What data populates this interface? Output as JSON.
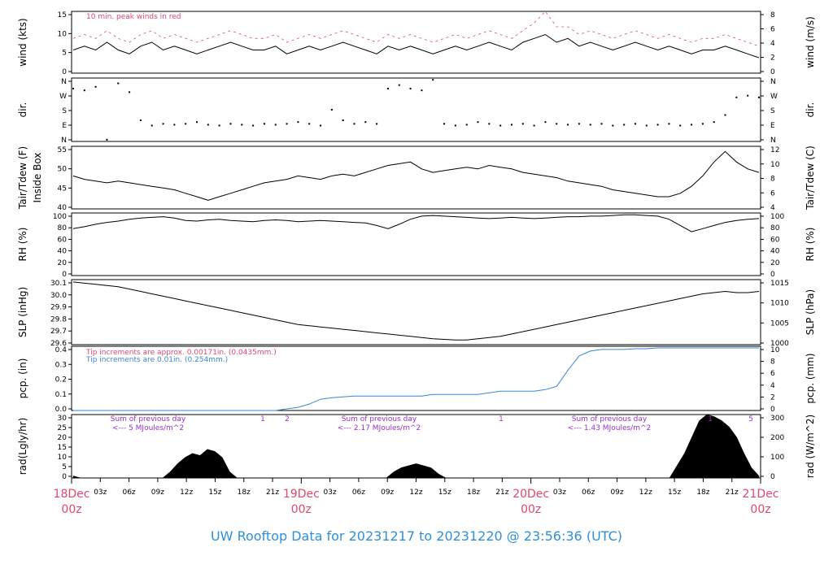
{
  "chart_data": [
    {
      "type": "line",
      "ylabel_left": "wind (kts)",
      "ylabel_right": "wind (m/s)",
      "annotation": "10 min. peak winds in red",
      "yticks_left": [
        "0",
        "5",
        "10",
        "15"
      ],
      "yticks_right": [
        "0",
        "2",
        "4",
        "6",
        "8"
      ],
      "ylim": [
        0,
        16
      ],
      "series": [
        {
          "values": [
            6,
            7,
            6,
            8,
            6,
            5,
            7,
            8,
            6,
            7,
            6,
            5,
            6,
            7,
            8,
            7,
            6,
            6,
            7,
            5,
            6,
            7,
            6,
            7,
            8,
            7,
            6,
            5,
            7,
            6,
            7,
            6,
            5,
            6,
            7,
            6,
            7,
            8,
            7,
            6,
            8,
            9,
            10,
            8,
            9,
            7,
            8,
            7,
            6,
            7,
            8,
            7,
            6,
            7,
            6,
            5,
            6,
            6,
            7,
            6,
            5,
            4
          ]
        },
        {
          "values": [
            9,
            10,
            9,
            11,
            9,
            8,
            10,
            11,
            9,
            10,
            9,
            8,
            9,
            10,
            11,
            10,
            9,
            9,
            10,
            8,
            9,
            10,
            9,
            10,
            11,
            10,
            9,
            8,
            10,
            9,
            10,
            9,
            8,
            9,
            10,
            9,
            10,
            11,
            10,
            9,
            11,
            13,
            16,
            12,
            12,
            10,
            11,
            10,
            9,
            10,
            11,
            10,
            9,
            10,
            9,
            8,
            9,
            9,
            10,
            9,
            8,
            7
          ]
        }
      ]
    },
    {
      "type": "scatter",
      "ylabel_left": "dir.",
      "ylabel_right": "dir.",
      "yticks_left": [
        "N",
        "E",
        "S",
        "W",
        "N"
      ],
      "yticks_right": [
        "N",
        "E",
        "S",
        "W",
        "N"
      ],
      "ylim": [
        0,
        360
      ],
      "series": [
        {
          "values": [
            300,
            290,
            310,
            10,
            330,
            280,
            120,
            90,
            100,
            95,
            100,
            110,
            95,
            90,
            100,
            95,
            90,
            100,
            95,
            100,
            110,
            100,
            90,
            180,
            120,
            100,
            110,
            100,
            300,
            320,
            300,
            290,
            350,
            100,
            90,
            95,
            110,
            100,
            90,
            95,
            100,
            90,
            110,
            100,
            95,
            100,
            95,
            100,
            90,
            95,
            100,
            90,
            95,
            100,
            90,
            95,
            100,
            110,
            150,
            250,
            260,
            250
          ]
        }
      ]
    },
    {
      "type": "line",
      "ylabel_left": "Tair/Tdew (F)\nInside Box",
      "ylabel_right": "Tair/Tdew (C)",
      "yticks_left": [
        "40",
        "45",
        "50",
        "55"
      ],
      "yticks_right": [
        "4",
        "6",
        "8",
        "10",
        "12"
      ],
      "ylim": [
        38.5,
        56.5
      ],
      "series": [
        {
          "values": [
            48,
            47,
            46.5,
            46,
            46.5,
            46,
            45.5,
            45,
            44.5,
            44,
            43,
            42,
            41,
            42,
            43,
            44,
            45,
            46,
            46.5,
            47,
            48,
            47.5,
            47,
            48,
            48.5,
            48,
            49,
            50,
            51,
            51.5,
            52,
            50,
            49,
            49.5,
            50,
            50.5,
            50,
            51,
            50.5,
            50,
            49,
            48.5,
            48,
            47.5,
            46.5,
            46,
            45.5,
            45,
            44,
            43.5,
            43,
            42.5,
            42,
            42,
            43,
            45,
            48,
            52,
            55,
            52,
            50,
            49
          ]
        }
      ]
    },
    {
      "type": "line",
      "ylabel_left": "RH (%)",
      "ylabel_right": "RH (%)",
      "yticks_left": [
        "0",
        "20",
        "40",
        "60",
        "80",
        "100"
      ],
      "yticks_right": [
        "0",
        "20",
        "40",
        "60",
        "80",
        "100"
      ],
      "ylim": [
        0,
        100
      ],
      "series": [
        {
          "values": [
            75,
            78,
            82,
            85,
            87,
            90,
            92,
            93,
            94,
            92,
            88,
            87,
            89,
            90,
            88,
            87,
            86,
            88,
            89,
            88,
            86,
            87,
            88,
            87,
            86,
            85,
            84,
            80,
            75,
            82,
            90,
            95,
            96,
            95,
            94,
            93,
            92,
            91,
            92,
            93,
            92,
            91,
            92,
            93,
            94,
            94,
            95,
            95,
            96,
            97,
            97,
            96,
            95,
            90,
            80,
            70,
            75,
            80,
            85,
            88,
            90,
            91
          ]
        }
      ]
    },
    {
      "type": "line",
      "ylabel_left": "SLP (inHg)",
      "ylabel_right": "SLP (hPa)",
      "yticks_left": [
        "29.6",
        "29.7",
        "29.8",
        "29.9",
        "30.0",
        "30.1"
      ],
      "yticks_right": [
        "1000",
        "1005",
        "1010",
        "1015"
      ],
      "ylim": [
        29.55,
        30.1
      ],
      "series": [
        {
          "values": [
            30.08,
            30.07,
            30.06,
            30.05,
            30.04,
            30.02,
            30.0,
            29.98,
            29.96,
            29.94,
            29.92,
            29.9,
            29.88,
            29.86,
            29.84,
            29.82,
            29.8,
            29.78,
            29.76,
            29.74,
            29.72,
            29.71,
            29.7,
            29.69,
            29.68,
            29.67,
            29.66,
            29.65,
            29.64,
            29.63,
            29.62,
            29.61,
            29.6,
            29.595,
            29.59,
            29.59,
            29.6,
            29.61,
            29.62,
            29.64,
            29.66,
            29.68,
            29.7,
            29.72,
            29.74,
            29.76,
            29.78,
            29.8,
            29.82,
            29.84,
            29.86,
            29.88,
            29.9,
            29.92,
            29.94,
            29.96,
            29.98,
            29.99,
            30.0,
            29.99,
            29.99,
            30.0
          ]
        }
      ]
    },
    {
      "type": "line",
      "ylabel_left": "pcp. (in)",
      "ylabel_right": "pcp. (mm)",
      "annotation_red": "Tip increments are approx. 0.00171in. (0.0435mm.)",
      "annotation_blue": "Tip increments are 0.01in. (0.254mm.)",
      "yticks_left": [
        "0.0",
        "0.1",
        "0.2",
        "0.3",
        "0.4"
      ],
      "yticks_right": [
        "0",
        "2",
        "4",
        "6",
        "8",
        "10"
      ],
      "ylim": [
        0,
        0.4
      ],
      "series": [
        {
          "values": [
            0,
            0,
            0,
            0,
            0,
            0,
            0,
            0,
            0,
            0,
            0,
            0,
            0,
            0,
            0,
            0,
            0,
            0,
            0,
            0.01,
            0.02,
            0.04,
            0.07,
            0.08,
            0.085,
            0.09,
            0.09,
            0.09,
            0.09,
            0.09,
            0.09,
            0.09,
            0.1,
            0.1,
            0.1,
            0.1,
            0.1,
            0.11,
            0.12,
            0.12,
            0.12,
            0.12,
            0.13,
            0.15,
            0.25,
            0.34,
            0.37,
            0.38,
            0.38,
            0.38,
            0.385,
            0.385,
            0.39,
            0.39,
            0.39,
            0.39,
            0.39,
            0.39,
            0.39,
            0.39,
            0.39,
            0.39
          ]
        }
      ]
    },
    {
      "type": "area",
      "ylabel_left": "rad(Lgly/hr)",
      "ylabel_right": "rad (W/m^2)",
      "yticks_left": [
        "0",
        "5",
        "10",
        "15",
        "20",
        "25",
        "30"
      ],
      "yticks_right": [
        "0",
        "100",
        "200",
        "300"
      ],
      "ylim": [
        0,
        31
      ],
      "annotations": [
        {
          "line1": "Sum of previous day",
          "line2": "<--- 5 MJoules/m^2"
        },
        {
          "line1": "Sum of previous day",
          "line2": "<--- 2.17 MJoules/m^2"
        },
        {
          "line1": "Sum of previous day",
          "line2": "<--- 1.43 MJoules/m^2"
        }
      ],
      "markers": [
        "1",
        "2",
        "1",
        "1",
        "5"
      ],
      "series": [
        {
          "values": [
            1,
            0,
            0,
            0,
            0,
            0,
            0,
            0,
            0,
            0,
            0,
            0,
            0,
            3,
            7,
            10,
            12,
            11,
            14,
            13,
            10,
            3,
            0,
            0,
            0,
            0,
            0,
            0,
            0,
            0,
            0,
            0,
            0,
            0,
            0,
            0,
            0,
            0,
            0,
            0,
            0,
            0,
            0,
            3,
            5,
            6,
            7,
            6,
            5,
            2,
            0,
            0,
            0,
            0,
            0,
            0,
            0,
            0,
            0,
            0,
            0,
            0,
            0,
            0,
            0,
            0,
            0,
            0,
            0,
            0,
            0,
            0,
            0,
            0,
            0,
            0,
            0,
            0,
            0,
            0,
            0,
            6,
            12,
            20,
            28,
            31,
            30,
            28,
            25,
            20,
            12,
            5,
            1
          ]
        }
      ],
      "xticks": [
        "03z",
        "06z",
        "09z",
        "12z",
        "15z",
        "18z",
        "21z",
        "03z",
        "06z",
        "09z",
        "12z",
        "15z",
        "18z",
        "21z",
        "03z",
        "06z",
        "09z",
        "12z",
        "15z",
        "18z",
        "21z"
      ],
      "x_day_labels": [
        {
          "date": "18Dec",
          "hour": "00z"
        },
        {
          "date": "19Dec",
          "hour": "00z"
        },
        {
          "date": "20Dec",
          "hour": "00z"
        },
        {
          "date": "21Dec",
          "hour": "00z"
        }
      ]
    }
  ],
  "footer": "UW Rooftop Data for 20231217  to  20231220 @ 23:56:36  (UTC)"
}
